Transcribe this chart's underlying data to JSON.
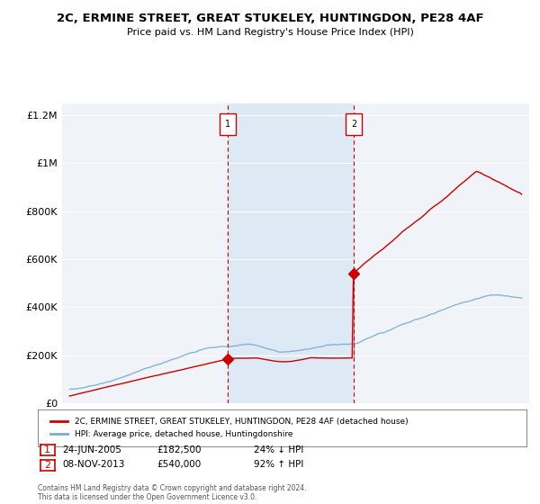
{
  "title_line1": "2C, ERMINE STREET, GREAT STUKELEY, HUNTINGDON, PE28 4AF",
  "title_line2": "Price paid vs. HM Land Registry's House Price Index (HPI)",
  "legend_red": "2C, ERMINE STREET, GREAT STUKELEY, HUNTINGDON, PE28 4AF (detached house)",
  "legend_blue": "HPI: Average price, detached house, Huntingdonshire",
  "sale1_date": "24-JUN-2005",
  "sale1_price": "£182,500",
  "sale1_pct": "24% ↓ HPI",
  "sale1_year": 2005.48,
  "sale1_value": 182500,
  "sale2_date": "08-NOV-2013",
  "sale2_price": "£540,000",
  "sale2_pct": "92% ↑ HPI",
  "sale2_year": 2013.86,
  "sale2_value": 540000,
  "copyright": "Contains HM Land Registry data © Crown copyright and database right 2024.\nThis data is licensed under the Open Government Licence v3.0.",
  "background_color": "#ffffff",
  "plot_bg_color": "#dce8f5",
  "red_color": "#cc0000",
  "blue_color": "#7aadd4",
  "shaded_region_color": "#dce8f5",
  "dashed_line_color": "#cc0000",
  "ylim": [
    0,
    1250000
  ],
  "yticks": [
    0,
    200000,
    400000,
    600000,
    800000,
    1000000,
    1200000
  ],
  "ytick_labels": [
    "£0",
    "£200K",
    "£400K",
    "£600K",
    "£800K",
    "£1M",
    "£1.2M"
  ],
  "xmin": 1994.5,
  "xmax": 2025.5
}
